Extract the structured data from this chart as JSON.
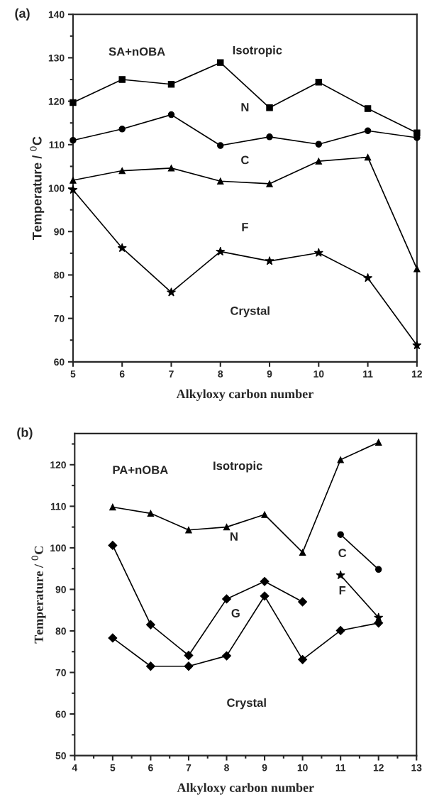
{
  "chart_data": [
    {
      "type": "line",
      "title": "(a)",
      "xlabel": "Alkyloxy carbon number",
      "ylabel": "Temperature / $^{0}$C",
      "x": [
        5,
        6,
        7,
        8,
        9,
        10,
        11,
        12
      ],
      "series": [
        {
          "color": "#000000",
          "marker": "square",
          "values": [
            119.7,
            125,
            123.9,
            128.9,
            118.5,
            124.4,
            118.3,
            112.7
          ]
        },
        {
          "color": "#000000",
          "marker": "circle",
          "values": [
            111,
            113.6,
            116.9,
            109.8,
            111.8,
            110.1,
            113.2,
            111.6
          ]
        },
        {
          "color": "#000000",
          "marker": "triangle",
          "values": [
            101.8,
            104,
            104.6,
            101.6,
            101,
            106.2,
            107.1,
            81.4
          ]
        },
        {
          "color": "#000000",
          "marker": "star",
          "values": [
            99.6,
            86.2,
            76,
            85.4,
            83.2,
            85.1,
            79.3,
            63.8
          ]
        }
      ],
      "xlim": [
        5,
        12
      ],
      "xticks": [
        5,
        6,
        7,
        8,
        9,
        10,
        11,
        12
      ],
      "ylim": [
        60,
        140
      ],
      "yticks": [
        60,
        70,
        80,
        90,
        100,
        110,
        120,
        130,
        140
      ],
      "grid": false,
      "annotations": [
        "SA+nOBA",
        "Isotropic",
        "N",
        "C",
        "F",
        "Crystal"
      ]
    },
    {
      "type": "line",
      "title": "(b)",
      "xlabel": "Alkyloxy carbon number",
      "ylabel": "Temperature / $^{0}$C",
      "series": [
        {
          "color": "#000000",
          "marker": "triangle",
          "x": [
            5,
            6,
            7,
            8,
            9,
            10,
            11,
            12
          ],
          "values": [
            109.8,
            108.3,
            104.3,
            105,
            108,
            98.9,
            121.2,
            125.4
          ]
        },
        {
          "color": "#000000",
          "marker": "diamond",
          "x": [
            5,
            6,
            7,
            8,
            9,
            10
          ],
          "values": [
            100.6,
            81.5,
            74.1,
            87.7,
            91.9,
            87
          ]
        },
        {
          "color": "#000000",
          "marker": "circle",
          "x": [
            11,
            12
          ],
          "values": [
            103.2,
            94.8
          ]
        },
        {
          "color": "#000000",
          "marker": "star",
          "x": [
            11,
            12
          ],
          "values": [
            93.4,
            83.2
          ]
        },
        {
          "color": "#000000",
          "marker": "diamond",
          "x": [
            5,
            6,
            7,
            8,
            9,
            10,
            11,
            12
          ],
          "values": [
            78.3,
            71.5,
            71.5,
            74,
            88.4,
            73.1,
            80.1,
            81.9
          ]
        }
      ],
      "xlim": [
        4,
        13
      ],
      "xticks": [
        4,
        5,
        6,
        7,
        8,
        9,
        10,
        11,
        12,
        13
      ],
      "ylim": [
        50,
        127.5
      ],
      "yticks": [
        50,
        60,
        70,
        80,
        90,
        100,
        110,
        120
      ],
      "grid": false,
      "annotations": [
        "PA+nOBA",
        "Isotropic",
        "N",
        "C",
        "F",
        "G",
        "Crystal"
      ]
    }
  ]
}
